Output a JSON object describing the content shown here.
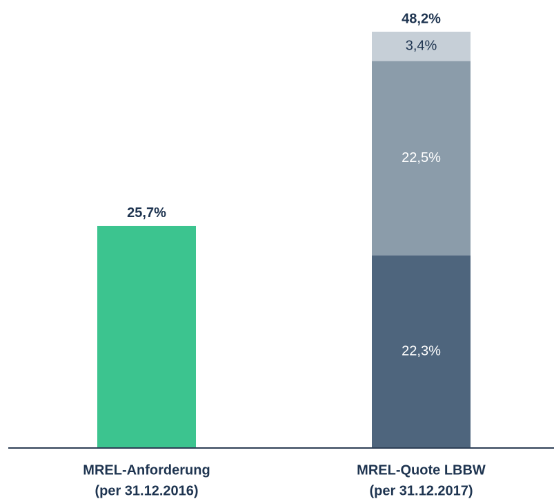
{
  "chart_data": {
    "type": "stacked_bar",
    "categories": [
      [
        "MREL-Anforderung",
        "(per 31.12.2016)"
      ],
      [
        "MREL-Quote LBBW",
        "(per 31.12.2017)"
      ]
    ],
    "series": [
      {
        "color": "#3cc48f",
        "values": [
          25.7,
          null
        ]
      },
      {
        "color": "#4e657d",
        "label_color": "#ffffff",
        "values": [
          null,
          22.3
        ],
        "value_labels": [
          null,
          "22,3%"
        ]
      },
      {
        "color": "#8b9caa",
        "label_color": "#ffffff",
        "values": [
          null,
          22.5
        ],
        "value_labels": [
          null,
          "22,5%"
        ]
      },
      {
        "color": "#c6cfd7",
        "label_color": "#1e3450",
        "values": [
          null,
          3.4
        ],
        "value_labels": [
          null,
          "3,4%"
        ]
      }
    ],
    "totals": [
      25.7,
      48.2
    ],
    "total_labels": [
      "25,7%",
      "48,2%"
    ],
    "ylim": [
      0,
      48.2
    ]
  }
}
